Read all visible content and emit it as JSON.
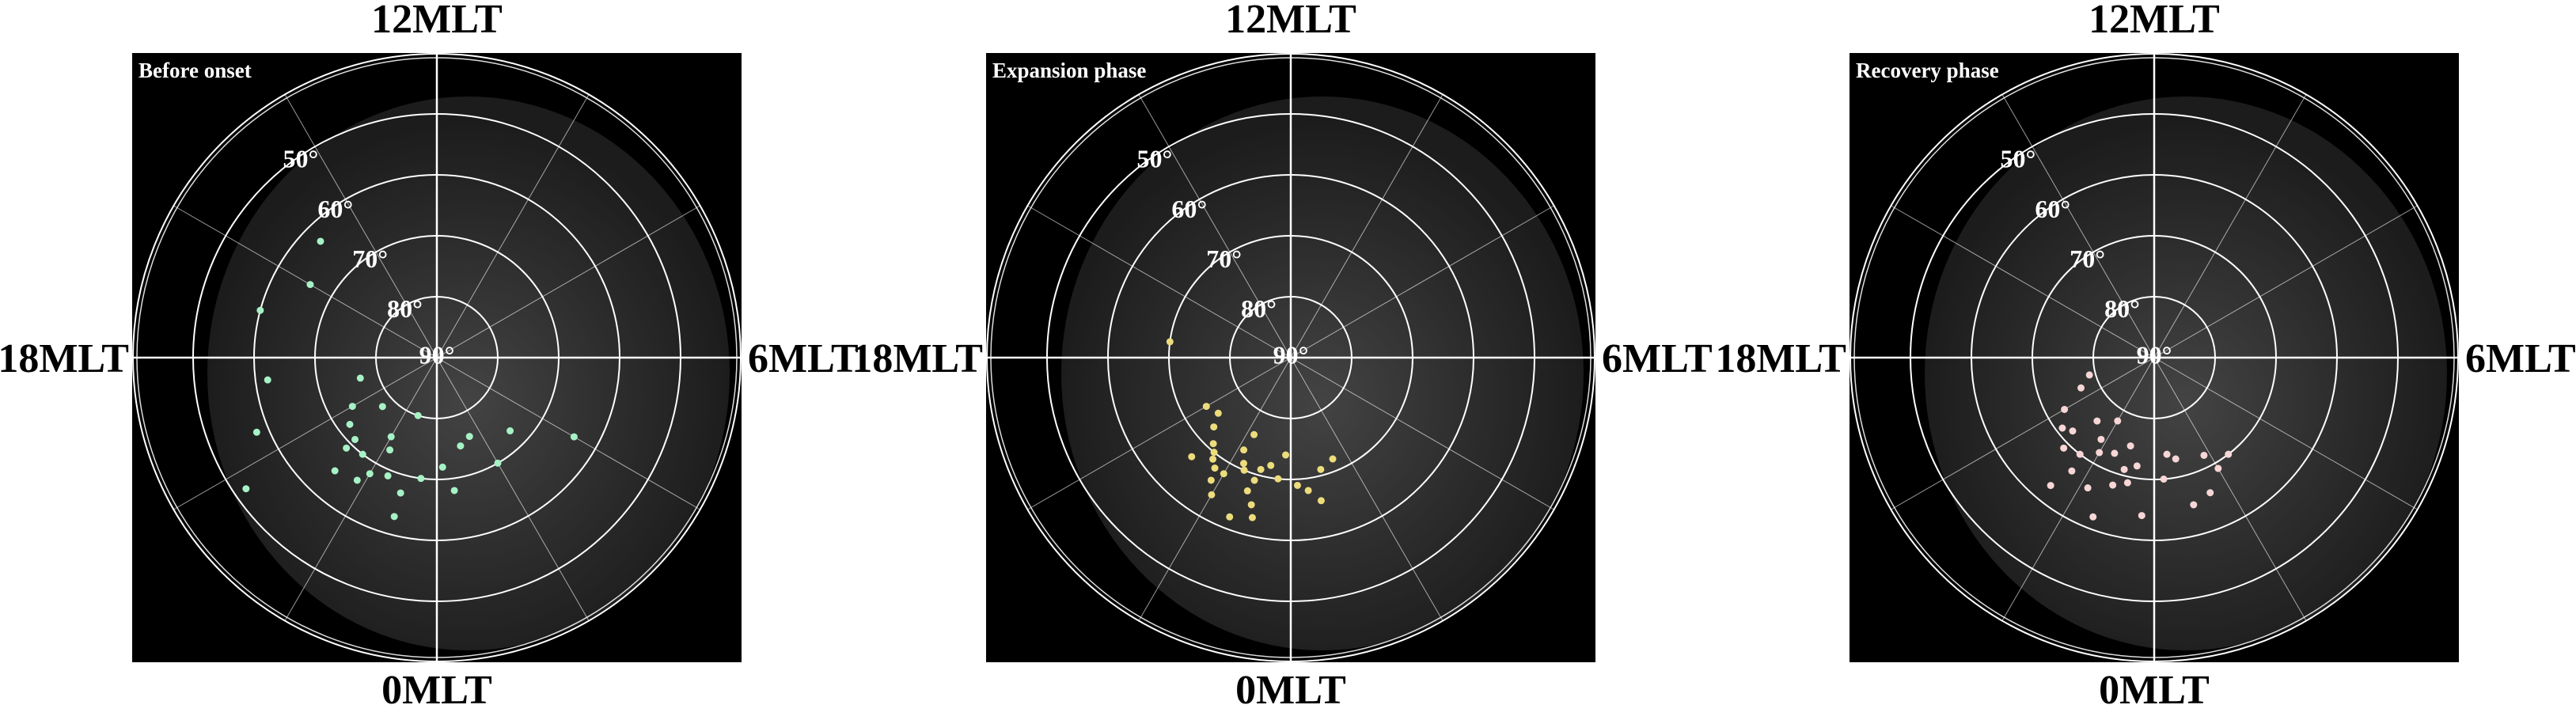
{
  "chart_data": [
    {
      "type": "polar_scatter",
      "title": "Before onset",
      "color": "#a6f2c6",
      "rlim": [
        90,
        40
      ],
      "rticks": [
        {
          "value": 90,
          "label": "90°"
        },
        {
          "value": 80,
          "label": "80°"
        },
        {
          "value": 70,
          "label": "70°"
        },
        {
          "value": 60,
          "label": "60°"
        },
        {
          "value": 50,
          "label": "50°"
        }
      ],
      "thetaticks": [
        {
          "value": 12,
          "label": "12MLT"
        },
        {
          "value": 18,
          "label": "18MLT"
        },
        {
          "value": 0,
          "label": "0MLT"
        },
        {
          "value": 6,
          "label": "6MLT"
        }
      ],
      "thetagrid": [
        0,
        2,
        4,
        6,
        8,
        10,
        12,
        14,
        16,
        18,
        20,
        22
      ],
      "theta": [
        21.5,
        22,
        21,
        22.5,
        20.5,
        23,
        21.8,
        22.2,
        20,
        21.2,
        23.5,
        0.5,
        1,
        19,
        18.5,
        17,
        16,
        20.8,
        22.8,
        0.2,
        2,
        3,
        4,
        19.5,
        15,
        22,
        21,
        23,
        1.5,
        20.3
      ],
      "r": [
        70,
        68,
        71,
        69,
        72,
        67,
        66,
        73,
        74,
        65,
        70,
        68,
        75,
        77,
        62,
        60,
        66,
        78,
        80,
        72,
        70,
        73,
        64,
        58,
        63,
        75,
        69,
        63,
        76,
        52
      ]
    },
    {
      "type": "polar_scatter",
      "title": "Expansion phase",
      "color": "#ecdc7c",
      "rlim": [
        90,
        40
      ],
      "rticks": [
        {
          "value": 90,
          "label": "90°"
        },
        {
          "value": 80,
          "label": "80°"
        },
        {
          "value": 70,
          "label": "70°"
        },
        {
          "value": 60,
          "label": "60°"
        },
        {
          "value": 50,
          "label": "50°"
        }
      ],
      "thetaticks": [
        {
          "value": 12,
          "label": "12MLT"
        },
        {
          "value": 18,
          "label": "18MLT"
        },
        {
          "value": 0,
          "label": "0MLT"
        },
        {
          "value": 6,
          "label": "6MLT"
        }
      ],
      "thetagrid": [
        0,
        2,
        4,
        6,
        8,
        10,
        12,
        14,
        16,
        18,
        20,
        22
      ],
      "theta": [
        22.5,
        22,
        23,
        21.5,
        22.8,
        23.3,
        21.8,
        22.2,
        23.6,
        21.2,
        0.2,
        0.5,
        20.8,
        22,
        23,
        21,
        1,
        20.5,
        22.6,
        23.8,
        21.4,
        22.9,
        0.8,
        20,
        17.5,
        1.5,
        22.3,
        23.1,
        21.7,
        22.4
      ],
      "r": [
        70,
        68,
        71,
        69,
        67,
        72,
        66,
        73,
        70,
        71,
        69,
        68,
        73,
        64,
        65,
        67,
        71,
        75,
        62,
        74,
        70,
        69,
        66,
        74,
        70,
        72,
        76,
        63,
        68,
        71
      ]
    },
    {
      "type": "polar_scatter",
      "title": "Recovery phase",
      "color": "#f8d6d6",
      "rlim": [
        90,
        40
      ],
      "rticks": [
        {
          "value": 90,
          "label": "90°"
        },
        {
          "value": 80,
          "label": "80°"
        },
        {
          "value": 70,
          "label": "70°"
        },
        {
          "value": 60,
          "label": "60°"
        },
        {
          "value": 50,
          "label": "50°"
        }
      ],
      "thetaticks": [
        {
          "value": 12,
          "label": "12MLT"
        },
        {
          "value": 18,
          "label": "18MLT"
        },
        {
          "value": 0,
          "label": "0MLT"
        },
        {
          "value": 6,
          "label": "6MLT"
        }
      ],
      "thetagrid": [
        0,
        2,
        4,
        6,
        8,
        10,
        12,
        14,
        16,
        18,
        20,
        22
      ],
      "theta": [
        22,
        21.5,
        22.5,
        23,
        21,
        22.8,
        23.4,
        21.8,
        20.5,
        0.3,
        0.8,
        1.5,
        2,
        21.2,
        22.2,
        23.7,
        20,
        19.5,
        1,
        22.6,
        21.6,
        23.2,
        20.8,
        0.5,
        2.5,
        22,
        21.4,
        23,
        19,
        1.8
      ],
      "r": [
        72,
        70,
        73,
        71,
        69,
        68,
        72,
        74,
        71,
        70,
        73,
        66,
        69,
        76,
        66,
        64,
        73,
        77,
        65,
        62,
        67,
        69,
        72,
        74,
        70,
        78,
        63,
        75,
        79,
        72
      ]
    }
  ]
}
